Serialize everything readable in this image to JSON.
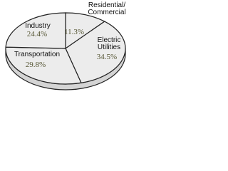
{
  "chart_data": {
    "type": "pie",
    "categories": [
      "Residential/\nCommercial",
      "Electric\nUtilities",
      "Transportation",
      "Industry"
    ],
    "values": [
      11.3,
      34.5,
      29.8,
      24.4
    ],
    "value_labels": [
      "11.3%",
      "34.5%",
      "29.8%",
      "24.4%"
    ],
    "color": "#ececec"
  }
}
